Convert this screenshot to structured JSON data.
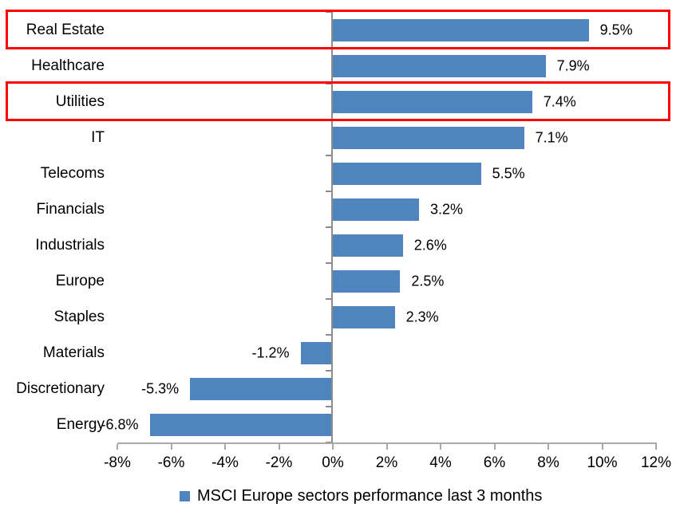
{
  "chart_data": {
    "type": "bar",
    "orientation": "horizontal",
    "title": "",
    "categories": [
      "Real Estate",
      "Healthcare",
      "Utilities",
      "IT",
      "Telecoms",
      "Financials",
      "Industrials",
      "Europe",
      "Staples",
      "Materials",
      "Discretionary",
      "Energy"
    ],
    "values": [
      9.5,
      7.9,
      7.4,
      7.1,
      5.5,
      3.2,
      2.6,
      2.5,
      2.3,
      -1.2,
      -5.3,
      -6.8
    ],
    "data_labels": [
      "9.5%",
      "7.9%",
      "7.4%",
      "7.1%",
      "5.5%",
      "3.2%",
      "2.6%",
      "2.5%",
      "2.3%",
      "-1.2%",
      "-5.3%",
      "-6.8%"
    ],
    "highlighted_categories": [
      "Real Estate",
      "Utilities"
    ],
    "x_axis": {
      "tick_labels": [
        "-8%",
        "-6%",
        "-4%",
        "-2%",
        "0%",
        "2%",
        "4%",
        "6%",
        "8%",
        "10%",
        "12%"
      ],
      "tick_values": [
        -8,
        -6,
        -4,
        -2,
        0,
        2,
        4,
        6,
        8,
        10,
        12
      ],
      "range": [
        -8,
        12
      ],
      "grid": false
    },
    "legend": {
      "label": "MSCI Europe sectors performance last 3 months",
      "position": "bottom"
    },
    "colors": {
      "bar": "#4E85BE",
      "highlight_box": "#FE0000",
      "axis": "#A9A9A9",
      "category_axis": "#8C8C8C",
      "text": "#000000",
      "background": "#FFFFFF"
    }
  }
}
